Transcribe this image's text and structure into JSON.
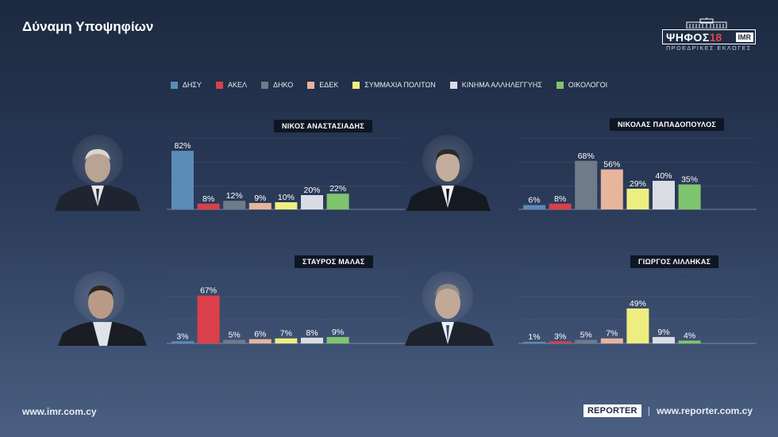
{
  "header": {
    "title": "Δύναμη Υποψηφίων"
  },
  "logo": {
    "word": "ΨΗΦΟΣ",
    "num": "18",
    "badge": "IMR",
    "subtitle": "ΠΡΟΕΔΡΙΚΕΣ ΕΚΛΟΓΕΣ"
  },
  "legend": [
    {
      "label": "ΔΗΣΥ",
      "color": "#5b8cb8"
    },
    {
      "label": "ΑΚΕΛ",
      "color": "#d9404a"
    },
    {
      "label": "ΔΗΚΟ",
      "color": "#6f7b89"
    },
    {
      "label": "ΕΔΕΚ",
      "color": "#e7b49c"
    },
    {
      "label": "ΣΥΜΜΑΧΙΑ ΠΟΛΙΤΩΝ",
      "color": "#eeee80"
    },
    {
      "label": "ΚΙΝΗΜΑ ΑΛΛΗΛΕΓΓΥΗΣ",
      "color": "#d9dce3"
    },
    {
      "label": "ΟΙΚΟΛΟΓΟΙ",
      "color": "#7fc46e"
    }
  ],
  "chart_data": [
    {
      "type": "bar",
      "title": "ΝΙΚΟΣ ΑΝΑΣΤΑΣΙΑΔΗΣ",
      "categories": [
        "ΔΗΣΥ",
        "ΑΚΕΛ",
        "ΔΗΚΟ",
        "ΕΔΕΚ",
        "ΣΥΜΜΑΧΙΑ ΠΟΛΙΤΩΝ",
        "ΚΙΝΗΜΑ ΑΛΛΗΛΕΓΓΥΗΣ",
        "ΟΙΚΟΛΟΓΟΙ"
      ],
      "values": [
        82,
        8,
        12,
        9,
        10,
        20,
        22
      ],
      "labels": [
        "82%",
        "8%",
        "12%",
        "9%",
        "10%",
        "20%",
        "22%"
      ],
      "ylim": [
        0,
        100
      ]
    },
    {
      "type": "bar",
      "title": "ΝΙΚΟΛΑΣ ΠΑΠΑΔΟΠΟΥΛΟΣ",
      "categories": [
        "ΔΗΣΥ",
        "ΑΚΕΛ",
        "ΔΗΚΟ",
        "ΕΔΕΚ",
        "ΣΥΜΜΑΧΙΑ ΠΟΛΙΤΩΝ",
        "ΚΙΝΗΜΑ ΑΛΛΗΛΕΓΓΥΗΣ",
        "ΟΙΚΟΛΟΓΟΙ"
      ],
      "values": [
        6,
        8,
        68,
        56,
        29,
        40,
        35
      ],
      "labels": [
        "6%",
        "8%",
        "68%",
        "56%",
        "29%",
        "40%",
        "35%"
      ],
      "ylim": [
        0,
        100
      ]
    },
    {
      "type": "bar",
      "title": "ΣΤΑΥΡΟΣ ΜΑΛΑΣ",
      "categories": [
        "ΔΗΣΥ",
        "ΑΚΕΛ",
        "ΔΗΚΟ",
        "ΕΔΕΚ",
        "ΣΥΜΜΑΧΙΑ ΠΟΛΙΤΩΝ",
        "ΚΙΝΗΜΑ ΑΛΛΗΛΕΓΓΥΗΣ",
        "ΟΙΚΟΛΟΓΟΙ"
      ],
      "values": [
        3,
        67,
        5,
        6,
        7,
        8,
        9
      ],
      "labels": [
        "3%",
        "67%",
        "5%",
        "6%",
        "7%",
        "8%",
        "9%"
      ],
      "ylim": [
        0,
        100
      ]
    },
    {
      "type": "bar",
      "title": "ΓΙΩΡΓΟΣ ΛΙΛΛΗΚΑΣ",
      "categories": [
        "ΔΗΣΥ",
        "ΑΚΕΛ",
        "ΔΗΚΟ",
        "ΕΔΕΚ",
        "ΣΥΜΜΑΧΙΑ ΠΟΛΙΤΩΝ",
        "ΚΙΝΗΜΑ ΑΛΛΗΛΕΓΓΥΗΣ",
        "ΟΙΚΟΛΟΓΟΙ"
      ],
      "values": [
        1,
        3,
        5,
        7,
        49,
        9,
        4
      ],
      "labels": [
        "1%",
        "3%",
        "5%",
        "7%",
        "49%",
        "9%",
        "4%"
      ],
      "ylim": [
        0,
        100
      ]
    }
  ],
  "footer": {
    "left_url": "www.imr.com.cy",
    "badge": "REPORTER",
    "separator": "|",
    "right_url": "www.reporter.com.cy"
  }
}
